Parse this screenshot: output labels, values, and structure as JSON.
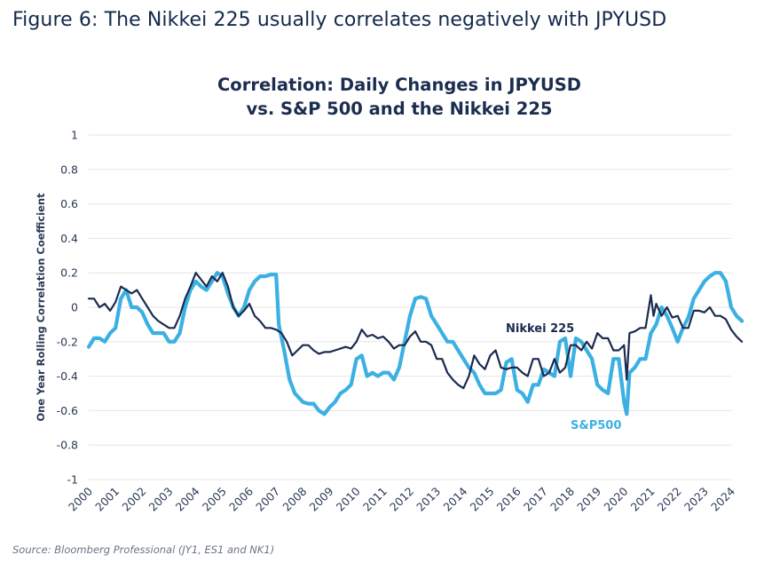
{
  "figure_title": "Figure 6: The Nikkei 225 usually correlates negatively with JPYUSD",
  "source": "Source: Bloomberg Professional (JY1, ES1 and NK1)",
  "colors": {
    "nikkei": "#1b2b4f",
    "sp500": "#3bb0e3",
    "grid": "#e6e6e6",
    "title": "#13294b"
  },
  "chart_data": {
    "type": "line",
    "title_line1": "Correlation: Daily Changes in JPYUSD",
    "title_line2": "vs. S&P 500 and the Nikkei 225",
    "xlabel": "",
    "ylabel": "One Year Rolling Correlation Coefficient",
    "ylim": [
      -1,
      1
    ],
    "xlim": [
      2000,
      2024
    ],
    "y_ticks": [
      "1",
      "0.8",
      "0.6",
      "0.4",
      "0.2",
      "0",
      "-0.2",
      "-0.4",
      "-0.6",
      "-0.8",
      "-1"
    ],
    "x_ticks": [
      "2000",
      "2001",
      "2002",
      "2003",
      "2004",
      "2005",
      "2006",
      "2007",
      "2008",
      "2009",
      "2010",
      "2011",
      "2012",
      "2013",
      "2014",
      "2015",
      "2016",
      "2017",
      "2018",
      "2019",
      "2020",
      "2021",
      "2022",
      "2023",
      "2024"
    ],
    "grid": true,
    "annotations": [
      {
        "text": "Nikkei 225",
        "series": "Nikkei 225"
      },
      {
        "text": "S&P500",
        "series": "S&P500"
      }
    ],
    "series": [
      {
        "name": "Nikkei 225",
        "color": "#1b2b4f",
        "x": [
          2000.0,
          2000.2,
          2000.4,
          2000.6,
          2000.8,
          2001.0,
          2001.2,
          2001.4,
          2001.6,
          2001.8,
          2002.0,
          2002.2,
          2002.4,
          2002.6,
          2002.8,
          2003.0,
          2003.2,
          2003.4,
          2003.6,
          2003.8,
          2004.0,
          2004.2,
          2004.4,
          2004.6,
          2004.8,
          2005.0,
          2005.2,
          2005.4,
          2005.6,
          2005.8,
          2006.0,
          2006.2,
          2006.4,
          2006.6,
          2006.8,
          2007.0,
          2007.2,
          2007.4,
          2007.6,
          2007.8,
          2008.0,
          2008.2,
          2008.4,
          2008.6,
          2008.8,
          2009.0,
          2009.2,
          2009.4,
          2009.6,
          2009.8,
          2010.0,
          2010.2,
          2010.4,
          2010.6,
          2010.8,
          2011.0,
          2011.2,
          2011.4,
          2011.6,
          2011.8,
          2012.0,
          2012.2,
          2012.4,
          2012.6,
          2012.8,
          2013.0,
          2013.2,
          2013.4,
          2013.6,
          2013.8,
          2014.0,
          2014.2,
          2014.4,
          2014.6,
          2014.8,
          2015.0,
          2015.2,
          2015.4,
          2015.6,
          2015.8,
          2016.0,
          2016.2,
          2016.4,
          2016.6,
          2016.8,
          2017.0,
          2017.2,
          2017.4,
          2017.6,
          2017.8,
          2018.0,
          2018.2,
          2018.4,
          2018.6,
          2018.8,
          2019.0,
          2019.2,
          2019.4,
          2019.6,
          2019.8,
          2020.0,
          2020.1,
          2020.2,
          2020.4,
          2020.6,
          2020.8,
          2021.0,
          2021.1,
          2021.2,
          2021.4,
          2021.6,
          2021.8,
          2022.0,
          2022.2,
          2022.4,
          2022.6,
          2022.8,
          2023.0,
          2023.2,
          2023.4,
          2023.6,
          2023.8,
          2024.0,
          2024.2,
          2024.4
        ],
        "values": [
          0.05,
          0.05,
          0.0,
          0.02,
          -0.02,
          0.03,
          0.12,
          0.1,
          0.08,
          0.1,
          0.05,
          0.0,
          -0.05,
          -0.08,
          -0.1,
          -0.12,
          -0.12,
          -0.05,
          0.05,
          0.12,
          0.2,
          0.16,
          0.12,
          0.18,
          0.15,
          0.2,
          0.12,
          0.0,
          -0.05,
          -0.02,
          0.02,
          -0.05,
          -0.08,
          -0.12,
          -0.12,
          -0.13,
          -0.15,
          -0.2,
          -0.28,
          -0.25,
          -0.22,
          -0.22,
          -0.25,
          -0.27,
          -0.26,
          -0.26,
          -0.25,
          -0.24,
          -0.23,
          -0.24,
          -0.2,
          -0.13,
          -0.17,
          -0.16,
          -0.18,
          -0.17,
          -0.2,
          -0.24,
          -0.22,
          -0.22,
          -0.17,
          -0.14,
          -0.2,
          -0.2,
          -0.22,
          -0.3,
          -0.3,
          -0.38,
          -0.42,
          -0.45,
          -0.47,
          -0.4,
          -0.28,
          -0.33,
          -0.36,
          -0.28,
          -0.25,
          -0.35,
          -0.36,
          -0.35,
          -0.35,
          -0.38,
          -0.4,
          -0.3,
          -0.3,
          -0.4,
          -0.38,
          -0.3,
          -0.38,
          -0.35,
          -0.22,
          -0.22,
          -0.25,
          -0.2,
          -0.24,
          -0.15,
          -0.18,
          -0.18,
          -0.25,
          -0.25,
          -0.22,
          -0.42,
          -0.15,
          -0.14,
          -0.12,
          -0.12,
          0.07,
          -0.05,
          0.02,
          -0.05,
          0.0,
          -0.06,
          -0.05,
          -0.12,
          -0.12,
          -0.02,
          -0.02,
          -0.03,
          0.0,
          -0.05,
          -0.05,
          -0.07,
          -0.13,
          -0.17,
          -0.2
        ]
      },
      {
        "name": "S&P500",
        "color": "#3bb0e3",
        "x": [
          2000.0,
          2000.2,
          2000.4,
          2000.6,
          2000.8,
          2001.0,
          2001.2,
          2001.4,
          2001.6,
          2001.8,
          2002.0,
          2002.2,
          2002.4,
          2002.6,
          2002.8,
          2003.0,
          2003.2,
          2003.4,
          2003.6,
          2003.8,
          2004.0,
          2004.2,
          2004.4,
          2004.6,
          2004.8,
          2005.0,
          2005.2,
          2005.4,
          2005.6,
          2005.8,
          2006.0,
          2006.2,
          2006.4,
          2006.6,
          2006.8,
          2007.0,
          2007.1,
          2007.3,
          2007.5,
          2007.7,
          2008.0,
          2008.2,
          2008.4,
          2008.6,
          2008.8,
          2009.0,
          2009.2,
          2009.4,
          2009.6,
          2009.8,
          2010.0,
          2010.2,
          2010.4,
          2010.6,
          2010.8,
          2011.0,
          2011.2,
          2011.4,
          2011.6,
          2011.8,
          2012.0,
          2012.2,
          2012.4,
          2012.6,
          2012.8,
          2013.0,
          2013.2,
          2013.4,
          2013.6,
          2013.8,
          2014.0,
          2014.2,
          2014.4,
          2014.6,
          2014.8,
          2015.0,
          2015.2,
          2015.4,
          2015.6,
          2015.8,
          2016.0,
          2016.2,
          2016.4,
          2016.6,
          2016.8,
          2017.0,
          2017.2,
          2017.4,
          2017.6,
          2017.8,
          2018.0,
          2018.2,
          2018.4,
          2018.6,
          2018.8,
          2019.0,
          2019.2,
          2019.4,
          2019.6,
          2019.8,
          2020.0,
          2020.1,
          2020.2,
          2020.4,
          2020.6,
          2020.8,
          2021.0,
          2021.2,
          2021.4,
          2021.6,
          2021.8,
          2022.0,
          2022.2,
          2022.4,
          2022.6,
          2022.8,
          2023.0,
          2023.2,
          2023.4,
          2023.6,
          2023.8,
          2024.0,
          2024.2,
          2024.4
        ],
        "values": [
          -0.23,
          -0.18,
          -0.18,
          -0.2,
          -0.15,
          -0.12,
          0.05,
          0.1,
          0.0,
          0.0,
          -0.03,
          -0.1,
          -0.15,
          -0.15,
          -0.15,
          -0.2,
          -0.2,
          -0.15,
          0.0,
          0.1,
          0.15,
          0.12,
          0.1,
          0.15,
          0.2,
          0.18,
          0.08,
          0.0,
          -0.05,
          0.0,
          0.1,
          0.15,
          0.18,
          0.18,
          0.19,
          0.19,
          -0.1,
          -0.25,
          -0.42,
          -0.5,
          -0.55,
          -0.56,
          -0.56,
          -0.6,
          -0.62,
          -0.58,
          -0.55,
          -0.5,
          -0.48,
          -0.45,
          -0.3,
          -0.28,
          -0.4,
          -0.38,
          -0.4,
          -0.38,
          -0.38,
          -0.42,
          -0.35,
          -0.2,
          -0.05,
          0.05,
          0.06,
          0.05,
          -0.05,
          -0.1,
          -0.15,
          -0.2,
          -0.2,
          -0.25,
          -0.3,
          -0.35,
          -0.38,
          -0.45,
          -0.5,
          -0.5,
          -0.5,
          -0.48,
          -0.32,
          -0.3,
          -0.48,
          -0.5,
          -0.55,
          -0.45,
          -0.45,
          -0.36,
          -0.38,
          -0.4,
          -0.2,
          -0.18,
          -0.4,
          -0.18,
          -0.2,
          -0.25,
          -0.3,
          -0.45,
          -0.48,
          -0.5,
          -0.3,
          -0.3,
          -0.55,
          -0.62,
          -0.38,
          -0.35,
          -0.3,
          -0.3,
          -0.15,
          -0.1,
          0.0,
          -0.05,
          -0.12,
          -0.2,
          -0.12,
          -0.06,
          0.05,
          0.1,
          0.15,
          0.18,
          0.2,
          0.2,
          0.15,
          0.0,
          -0.05,
          -0.08
        ]
      }
    ]
  }
}
